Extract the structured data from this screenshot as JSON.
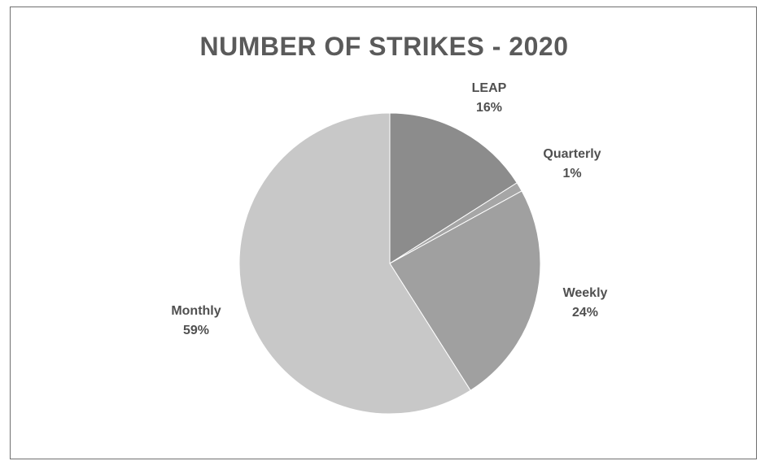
{
  "chart_data": {
    "type": "pie",
    "title": "NUMBER OF STRIKES - 2020",
    "categories": [
      "LEAP",
      "Quarterly",
      "Weekly",
      "Monthly"
    ],
    "values": [
      16,
      1,
      24,
      59
    ],
    "labels": [
      "16%",
      "1%",
      "24%",
      "59%"
    ],
    "colors": [
      "#8c8c8c",
      "#a6a6a6",
      "#a0a0a0",
      "#c8c8c8"
    ],
    "legend": "none",
    "data_labels": "outside"
  }
}
